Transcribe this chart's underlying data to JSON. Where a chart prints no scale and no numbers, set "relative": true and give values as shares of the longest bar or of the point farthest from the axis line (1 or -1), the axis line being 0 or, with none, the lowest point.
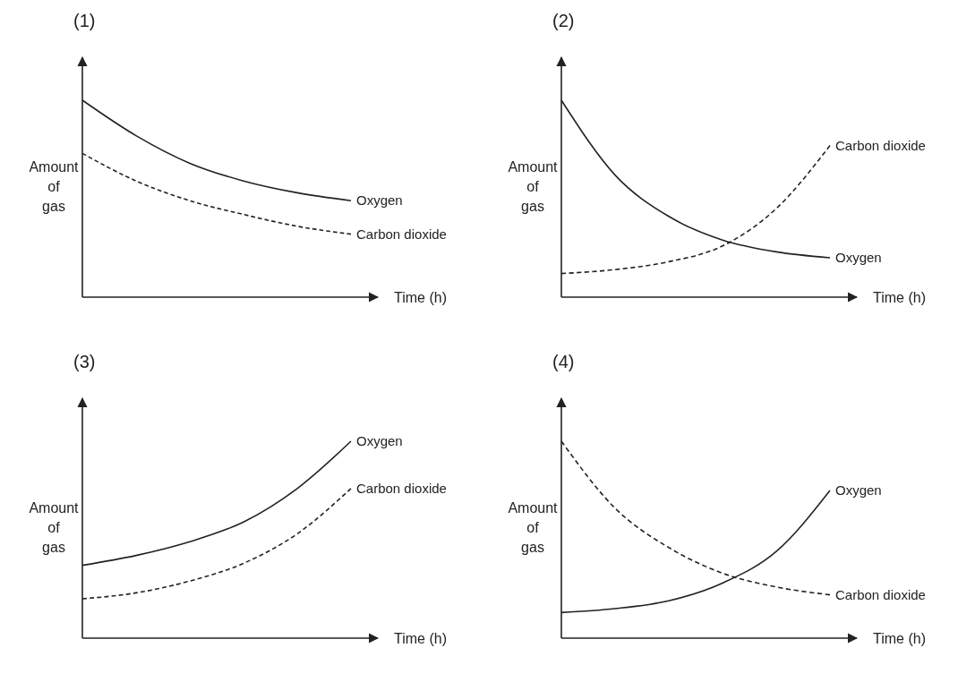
{
  "chart_data": [
    {
      "type": "line",
      "title": "(1)",
      "xlabel": "Time (h)",
      "ylabel": "Amount of gas",
      "relative": true,
      "categories": [
        null,
        null,
        null,
        null,
        null,
        null,
        null
      ],
      "series": [
        {
          "name": "Oxygen",
          "color": "#222222",
          "line_style": "solid",
          "values": [
            1,
            0.82,
            0.68,
            0.59,
            0.53,
            0.49,
            null
          ]
        },
        {
          "name": "Carbon dioxide",
          "color": "#222222",
          "line_style": "dashed",
          "values": [
            0.73,
            0.59,
            0.49,
            0.42,
            0.36,
            0.32,
            null
          ]
        }
      ]
    },
    {
      "type": "line",
      "title": "(2)",
      "xlabel": "Time (h)",
      "ylabel": "Amount of gas",
      "relative": true,
      "categories": [
        null,
        null,
        null,
        null,
        null,
        null,
        null
      ],
      "series": [
        {
          "name": "Oxygen",
          "color": "#222222",
          "line_style": "solid",
          "values": [
            1,
            0.62,
            0.41,
            0.29,
            0.23,
            0.2,
            null
          ]
        },
        {
          "name": "Carbon dioxide",
          "color": "#222222",
          "line_style": "dashed",
          "values": [
            0.12,
            0.14,
            0.18,
            0.26,
            0.45,
            0.77,
            null
          ]
        }
      ]
    },
    {
      "type": "line",
      "title": "(3)",
      "xlabel": "Time (h)",
      "ylabel": "Amount of gas",
      "relative": true,
      "categories": [
        null,
        null,
        null,
        null,
        null,
        null,
        null
      ],
      "series": [
        {
          "name": "Oxygen",
          "color": "#222222",
          "line_style": "solid",
          "values": [
            0.37,
            0.42,
            0.49,
            0.59,
            0.76,
            1,
            null
          ]
        },
        {
          "name": "Carbon dioxide",
          "color": "#222222",
          "line_style": "dashed",
          "values": [
            0.2,
            0.23,
            0.29,
            0.38,
            0.53,
            0.76,
            null
          ]
        }
      ]
    },
    {
      "type": "line",
      "title": "(4)",
      "xlabel": "Time (h)",
      "ylabel": "Amount of gas",
      "relative": true,
      "categories": [
        null,
        null,
        null,
        null,
        null,
        null,
        null
      ],
      "series": [
        {
          "name": "Oxygen",
          "color": "#222222",
          "line_style": "solid",
          "values": [
            0.13,
            0.15,
            0.19,
            0.28,
            0.44,
            0.75,
            null
          ]
        },
        {
          "name": "Carbon dioxide",
          "color": "#222222",
          "line_style": "dashed",
          "values": [
            1,
            0.66,
            0.46,
            0.33,
            0.26,
            0.22,
            null
          ]
        }
      ]
    }
  ]
}
